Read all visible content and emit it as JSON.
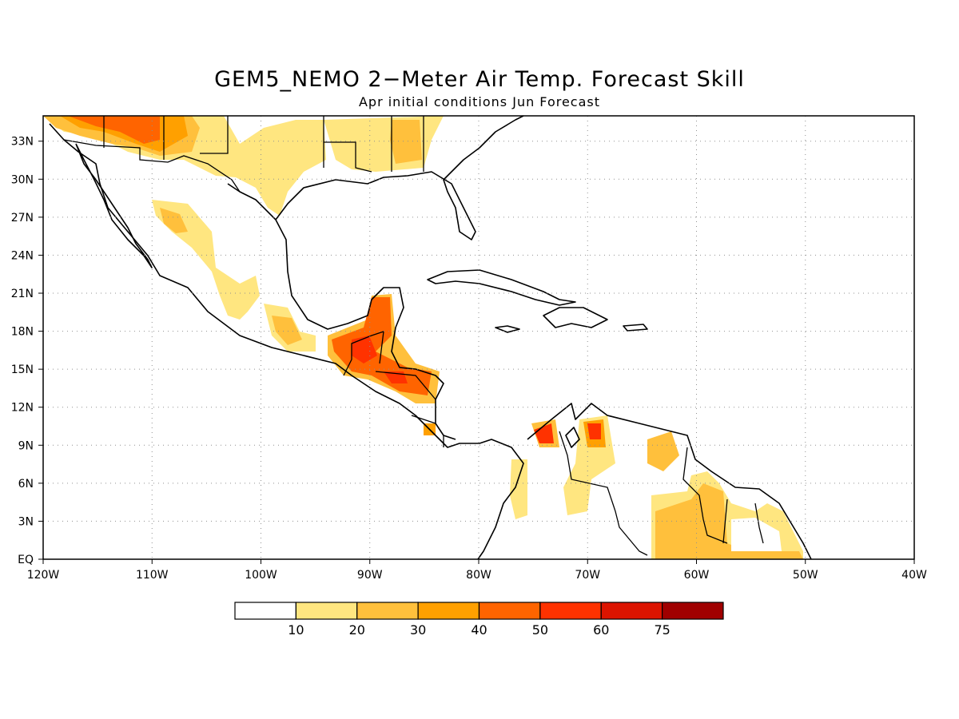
{
  "title": "GEM5_NEMO 2−Meter Air Temp. Forecast Skill",
  "subtitle": "Apr initial conditions  Jun Forecast",
  "map": {
    "lon_range": [
      -120,
      -40
    ],
    "lat_range": [
      0,
      35
    ],
    "lon_ticks": [
      "120W",
      "110W",
      "100W",
      "90W",
      "80W",
      "70W",
      "60W",
      "50W",
      "40W"
    ],
    "lat_ticks": [
      "EQ",
      "3N",
      "6N",
      "9N",
      "12N",
      "15N",
      "18N",
      "21N",
      "24N",
      "27N",
      "30N",
      "33N"
    ],
    "grid": true
  },
  "legend": {
    "colors": [
      "#ffffff",
      "#ffe680",
      "#ffc03c",
      "#ffa000",
      "#ff6400",
      "#ff3200",
      "#dc1400",
      "#a00000"
    ],
    "labels": [
      "10",
      "20",
      "30",
      "40",
      "50",
      "60",
      "75"
    ]
  }
}
